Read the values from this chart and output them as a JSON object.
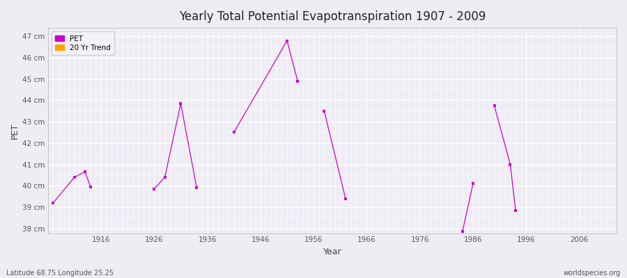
{
  "title": "Yearly Total Potential Evapotranspiration 1907 - 2009",
  "xlabel": "Year",
  "ylabel": "PET",
  "subtitle_lat_lon": "Latitude 68.75 Longitude 25.25",
  "watermark": "worldspecies.org",
  "xlim": [
    1906,
    2013
  ],
  "ylim": [
    37.75,
    47.4
  ],
  "xticks": [
    1916,
    1926,
    1936,
    1946,
    1956,
    1966,
    1976,
    1986,
    1996,
    2006
  ],
  "ytick_labels": [
    "38 cm",
    "39 cm",
    "40 cm",
    "41 cm",
    "42 cm",
    "43 cm",
    "44 cm",
    "45 cm",
    "46 cm",
    "47 cm"
  ],
  "ytick_values": [
    38,
    39,
    40,
    41,
    42,
    43,
    44,
    45,
    46,
    47
  ],
  "pet_color": "#CC00CC",
  "trend_color": "#FFA500",
  "bg_color": "#EEEDF4",
  "grid_major_color": "#FFFFFF",
  "grid_minor_color": "#FFFFFF",
  "pet_segments": [
    [
      [
        1907,
        39.2
      ],
      [
        1911,
        40.4
      ],
      [
        1913,
        40.65
      ],
      [
        1914,
        39.95
      ]
    ],
    [
      [
        1926,
        39.85
      ],
      [
        1928,
        40.4
      ],
      [
        1931,
        43.85
      ],
      [
        1934,
        39.9
      ]
    ],
    [
      [
        1941,
        42.5
      ],
      [
        1951,
        46.8
      ],
      [
        1953,
        44.9
      ]
    ],
    [
      [
        1958,
        43.5
      ],
      [
        1962,
        39.4
      ]
    ],
    [
      [
        1984,
        37.85
      ],
      [
        1986,
        40.1
      ]
    ],
    [
      [
        1990,
        43.75
      ],
      [
        1993,
        41.0
      ],
      [
        1994,
        38.85
      ]
    ]
  ],
  "pet_points": [
    [
      1907,
      39.2
    ],
    [
      1911,
      40.4
    ],
    [
      1913,
      40.65
    ],
    [
      1914,
      39.95
    ],
    [
      1926,
      39.85
    ],
    [
      1928,
      40.4
    ],
    [
      1931,
      43.85
    ],
    [
      1934,
      39.9
    ],
    [
      1941,
      42.5
    ],
    [
      1951,
      46.8
    ],
    [
      1953,
      44.9
    ],
    [
      1958,
      43.5
    ],
    [
      1962,
      39.4
    ],
    [
      1984,
      37.85
    ],
    [
      1986,
      40.1
    ],
    [
      1990,
      43.75
    ],
    [
      1993,
      41.0
    ],
    [
      1994,
      38.85
    ]
  ]
}
